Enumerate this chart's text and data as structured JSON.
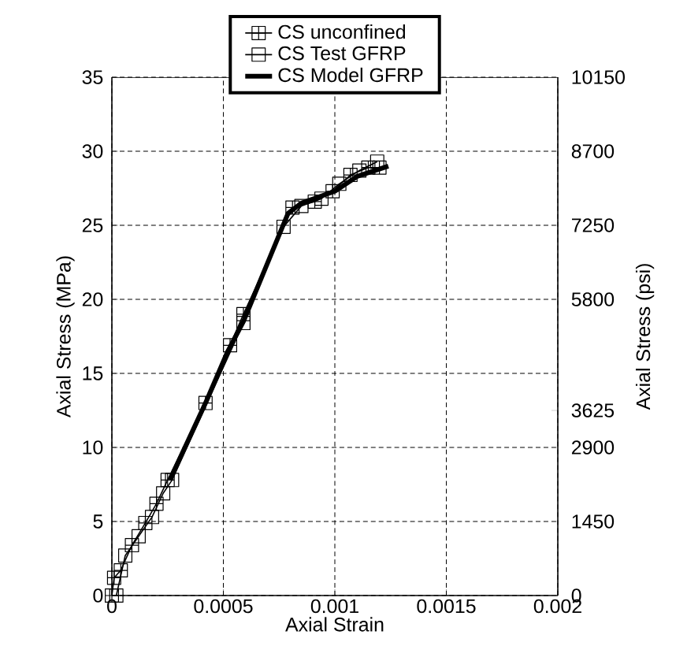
{
  "chart_data": {
    "type": "line",
    "xlabel": "Axial Strain",
    "ylabel": "Axial Stress (MPa)",
    "y2label": "Axial Stress (psi)",
    "xlim": [
      0,
      0.002
    ],
    "xticks": [
      0,
      0.0005,
      0.001,
      0.0015,
      0.002
    ],
    "ylim": [
      0,
      35
    ],
    "yticks": [
      0,
      5,
      10,
      15,
      20,
      25,
      30,
      35
    ],
    "y2lim": [
      0,
      10150
    ],
    "y2ticks": [
      0,
      1450,
      2900,
      3625,
      5800,
      7250,
      8700,
      10150
    ],
    "grid": true,
    "legend": "top",
    "series": [
      {
        "name": "CS unconfined",
        "color": "#000000",
        "marker": "cross",
        "x": [
          0,
          1e-05,
          4e-05,
          9e-05,
          0.00015,
          0.0002,
          0.00025,
          0.00042,
          0.00053,
          0.00059,
          0.00081,
          0.00091,
          0.00099,
          0.00107,
          0.00115,
          0.0012
        ],
        "values": [
          0,
          1.2,
          1.7,
          3.4,
          4.9,
          6.2,
          7.8,
          13.0,
          16.9,
          19.0,
          26.2,
          26.6,
          27.3,
          28.4,
          28.9,
          28.9
        ]
      },
      {
        "name": "CS Test GFRP",
        "color": "#000000",
        "marker": "square",
        "x": [
          2e-05,
          6e-05,
          0.00012,
          0.00018,
          0.00023,
          0.00027,
          0.00059,
          0.00077,
          0.00085,
          0.00094,
          0.00102,
          0.00111,
          0.00119
        ],
        "values": [
          0,
          2.7,
          4.0,
          5.3,
          6.9,
          7.8,
          18.4,
          24.9,
          26.3,
          26.8,
          27.8,
          28.7,
          29.3
        ]
      },
      {
        "name": "CS Model GFRP",
        "color": "#000000",
        "marker": "none",
        "x": [
          0.00026,
          0.00042,
          0.00052,
          0.00059,
          0.00079,
          0.00085,
          0.001,
          0.0011,
          0.00124
        ],
        "values": [
          7.8,
          13.0,
          16.5,
          18.5,
          25.8,
          26.5,
          27.3,
          28.3,
          29.0
        ]
      }
    ]
  }
}
